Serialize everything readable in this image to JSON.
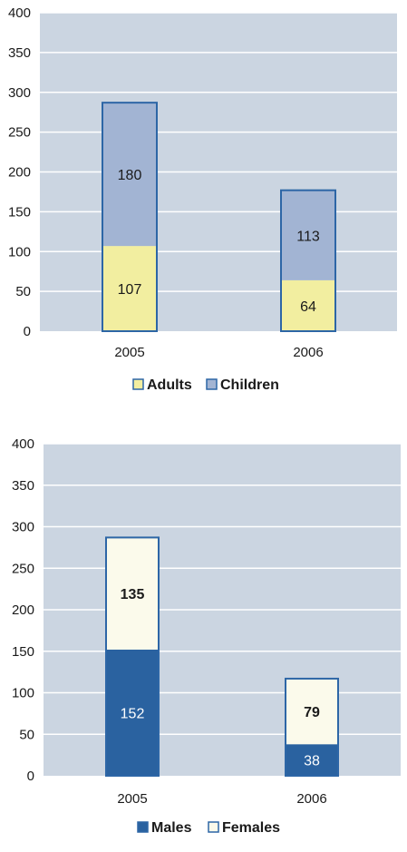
{
  "chart_data": [
    {
      "type": "bar",
      "stacked": true,
      "categories": [
        "2005",
        "2006"
      ],
      "ylim": [
        0,
        400
      ],
      "yticks": [
        "0",
        "50",
        "100",
        "150",
        "200",
        "250",
        "300",
        "350",
        "400"
      ],
      "grid": true,
      "legend_position": "bottom",
      "series": [
        {
          "name": "Adults",
          "values": [
            107,
            64
          ],
          "labels": [
            "107",
            "64"
          ],
          "color": "#f2eea0",
          "label_color": "#1a1a1a",
          "label_bold": false
        },
        {
          "name": "Children",
          "values": [
            180,
            113
          ],
          "labels": [
            "180",
            "113"
          ],
          "color": "#a2b4d3",
          "label_color": "#1a1a1a",
          "label_bold": false
        }
      ],
      "colors": {
        "plot_bg": "#cbd5e1",
        "gridline": "#ffffff",
        "bar_outline": "#2d66a6"
      }
    },
    {
      "type": "bar",
      "stacked": true,
      "categories": [
        "2005",
        "2006"
      ],
      "ylim": [
        0,
        400
      ],
      "yticks": [
        "0",
        "50",
        "100",
        "150",
        "200",
        "250",
        "300",
        "350",
        "400"
      ],
      "grid": true,
      "legend_position": "bottom",
      "series": [
        {
          "name": "Males",
          "values": [
            152,
            38
          ],
          "labels": [
            "152",
            "38"
          ],
          "color": "#2a62a0",
          "label_color": "#ffffff",
          "label_bold": false
        },
        {
          "name": "Females",
          "values": [
            135,
            79
          ],
          "labels": [
            "135",
            "79"
          ],
          "color": "#fbfaeb",
          "label_color": "#1a1a1a",
          "label_bold": true
        }
      ],
      "colors": {
        "plot_bg": "#cbd5e1",
        "gridline": "#ffffff",
        "bar_outline": "#2d66a6"
      }
    }
  ]
}
